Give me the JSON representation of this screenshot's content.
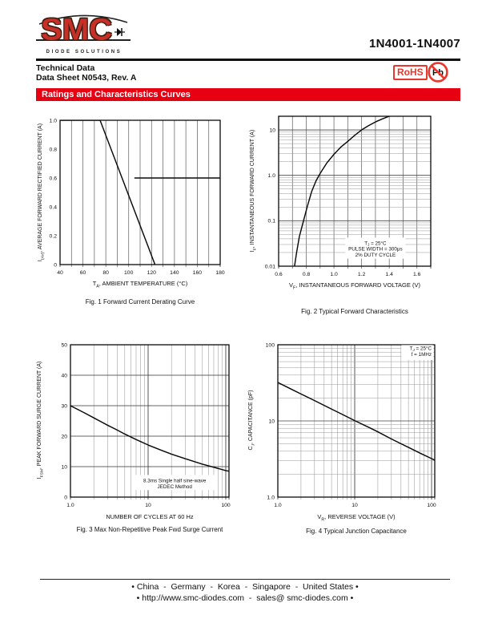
{
  "colors": {
    "accent": "#e60012",
    "brand_red": "#c63027",
    "badge_red": "#e8372d"
  },
  "header": {
    "brand": {
      "name": "SMC",
      "tagline": "DIODE SOLUTIONS"
    },
    "part_number": "1N4001-1N4007",
    "doc_line1": "Technical Data",
    "doc_line2": "Data Sheet N0543, Rev. A",
    "badges": {
      "rohs": "RoHS",
      "pb": "Pb"
    },
    "section_title": "Ratings and Characteristics Curves"
  },
  "chart_data": [
    {
      "id": "fig1",
      "type": "line",
      "title": "Fig. 1 Forward Current Derating Curve",
      "xlabel": "T~A~, AMBIENT TEMPERATURE (°C)",
      "ylabel": "I~(AV)~, AVERAGE FORWARD RECTIFIED CURRENT (A)",
      "x": {
        "scale": "linear",
        "min": 40,
        "max": 180,
        "grid_step": 10,
        "ticks": [
          {
            "v": 40,
            "t": "40"
          },
          {
            "v": 60,
            "t": "60"
          },
          {
            "v": 80,
            "t": "80"
          },
          {
            "v": 100,
            "t": "100"
          },
          {
            "v": 120,
            "t": "120"
          },
          {
            "v": 140,
            "t": "140"
          },
          {
            "v": 160,
            "t": "160"
          },
          {
            "v": 180,
            "t": "180"
          }
        ]
      },
      "y": {
        "scale": "linear",
        "min": 0,
        "max": 1.0,
        "grid_step": 0,
        "ticks": [
          {
            "v": 0,
            "t": "0"
          },
          {
            "v": 0.2,
            "t": "0.2"
          },
          {
            "v": 0.4,
            "t": "0.4"
          },
          {
            "v": 0.6,
            "t": "0.6"
          },
          {
            "v": 0.8,
            "t": "0.8"
          },
          {
            "v": 1.0,
            "t": "1.0"
          }
        ]
      },
      "series": [
        {
          "name": "forward-current-derating-curve",
          "points": [
            [
              40,
              1.0
            ],
            [
              75,
              1.0
            ],
            [
              123,
              0
            ]
          ]
        },
        {
          "name": "derated-current-0p6A-line",
          "points": [
            [
              105,
              0.6
            ],
            [
              180,
              0.6
            ]
          ]
        }
      ],
      "annotations": []
    },
    {
      "id": "fig2",
      "type": "line",
      "title": "Fig. 2 Typical Forward Characteristics",
      "xlabel": "V~F~, INSTANTANEOUS FORWARD VOLTAGE (V)",
      "ylabel": "I~F~, INSTANTANEOUS FORWARD CURRENT (A)",
      "x": {
        "scale": "linear",
        "min": 0.6,
        "max": 1.7,
        "grid_step": 0.1,
        "ticks": [
          {
            "v": 0.6,
            "t": "0.6"
          },
          {
            "v": 0.8,
            "t": "0.8"
          },
          {
            "v": 1.0,
            "t": "1.0"
          },
          {
            "v": 1.2,
            "t": "1.2"
          },
          {
            "v": 1.4,
            "t": "1.4"
          },
          {
            "v": 1.6,
            "t": "1.6"
          }
        ]
      },
      "y": {
        "scale": "log",
        "min": 0.01,
        "max": 20,
        "ticks": [
          {
            "v": 0.01,
            "t": "0.01"
          },
          {
            "v": 0.1,
            "t": "0.1"
          },
          {
            "v": 1.0,
            "t": "1.0"
          },
          {
            "v": 10,
            "t": "10"
          }
        ]
      },
      "series": [
        {
          "name": "typical-forward-characteristic-curve",
          "points": [
            [
              0.715,
              0.01
            ],
            [
              0.73,
              0.02
            ],
            [
              0.75,
              0.045
            ],
            [
              0.78,
              0.1
            ],
            [
              0.81,
              0.22
            ],
            [
              0.84,
              0.45
            ],
            [
              0.87,
              0.75
            ],
            [
              0.9,
              1.1
            ],
            [
              0.95,
              1.9
            ],
            [
              1.0,
              2.9
            ],
            [
              1.05,
              4.2
            ],
            [
              1.1,
              5.6
            ],
            [
              1.15,
              7.6
            ],
            [
              1.2,
              10
            ],
            [
              1.25,
              12.4
            ],
            [
              1.3,
              15
            ],
            [
              1.35,
              17.5
            ],
            [
              1.4,
              20
            ],
            [
              1.43,
              21.5
            ]
          ]
        }
      ],
      "annotations": [
        {
          "x": 1.3,
          "y": 0.024,
          "align": "middle",
          "lines": [
            "T~J~ = 25°C",
            "PULSE WIDTH = 300μs",
            "2% DUTY CYCLE"
          ]
        }
      ]
    },
    {
      "id": "fig3",
      "type": "line",
      "title": "Fig. 3  Max Non-Repetitive Peak Fwd Surge Current",
      "xlabel": "NUMBER OF CYCLES AT 60 Hz",
      "ylabel": "I~FSM~, PEAK FORWARD SURGE CURRENT (A)",
      "x": {
        "scale": "log",
        "min": 1,
        "max": 110,
        "ticks": [
          {
            "v": 1,
            "t": "1.0"
          },
          {
            "v": 10,
            "t": "10"
          },
          {
            "v": 100,
            "t": "100"
          }
        ]
      },
      "y": {
        "scale": "linear",
        "min": 0,
        "max": 50,
        "grid_step": 10,
        "ticks": [
          {
            "v": 0,
            "t": "0"
          },
          {
            "v": 10,
            "t": "10"
          },
          {
            "v": 20,
            "t": "20"
          },
          {
            "v": 30,
            "t": "30"
          },
          {
            "v": 40,
            "t": "40"
          },
          {
            "v": 50,
            "t": "50"
          }
        ]
      },
      "series": [
        {
          "name": "peak-forward-surge-current-curve",
          "points": [
            [
              1,
              30
            ],
            [
              1.5,
              27.7
            ],
            [
              2,
              26
            ],
            [
              3,
              23.6
            ],
            [
              4,
              22
            ],
            [
              5,
              20.7
            ],
            [
              7,
              18.9
            ],
            [
              10,
              17.1
            ],
            [
              15,
              15.3
            ],
            [
              20,
              14.1
            ],
            [
              30,
              12.6
            ],
            [
              40,
              11.6
            ],
            [
              50,
              10.8
            ],
            [
              70,
              9.8
            ],
            [
              100,
              8.7
            ],
            [
              110,
              8.5
            ]
          ]
        }
      ],
      "annotations": [
        {
          "x": 22,
          "y": 4.5,
          "align": "middle",
          "lines": [
            "8.3ms Single half sine-wave",
            "JEDEC Method"
          ]
        }
      ]
    },
    {
      "id": "fig4",
      "type": "line",
      "title": "Fig. 4 Typical Junction Capacitance",
      "xlabel": "V~R~, REVERSE VOLTAGE (V)",
      "ylabel": "C~J~, CAPACITANCE (pF)",
      "x": {
        "scale": "log",
        "min": 1,
        "max": 110,
        "ticks": [
          {
            "v": 1,
            "t": "1.0"
          },
          {
            "v": 10,
            "t": "10"
          },
          {
            "v": 100,
            "t": "100"
          }
        ]
      },
      "y": {
        "scale": "log",
        "min": 1,
        "max": 100,
        "ticks": [
          {
            "v": 1,
            "t": "1.0"
          },
          {
            "v": 10,
            "t": "10"
          },
          {
            "v": 100,
            "t": "100"
          }
        ]
      },
      "series": [
        {
          "name": "junction-capacitance-curve",
          "points": [
            [
              1,
              32
            ],
            [
              1.5,
              26.1
            ],
            [
              2,
              22.6
            ],
            [
              3,
              18.5
            ],
            [
              5,
              14.3
            ],
            [
              7,
              12.1
            ],
            [
              10,
              10.1
            ],
            [
              15,
              8.3
            ],
            [
              20,
              7.2
            ],
            [
              30,
              5.8
            ],
            [
              50,
              4.5
            ],
            [
              70,
              3.8
            ],
            [
              100,
              3.2
            ],
            [
              110,
              3.05
            ]
          ]
        }
      ],
      "annotations": [
        {
          "x": 100,
          "y": 85,
          "align": "end",
          "lines": [
            "T~J~ = 25°C",
            "f = 1MHz"
          ]
        }
      ]
    }
  ],
  "footer": {
    "line1": "• China  -  Germany  -  Korea  -  Singapore  -  United States •",
    "line2": "• http://www.smc-diodes.com  -  sales@ smc-diodes.com •"
  }
}
